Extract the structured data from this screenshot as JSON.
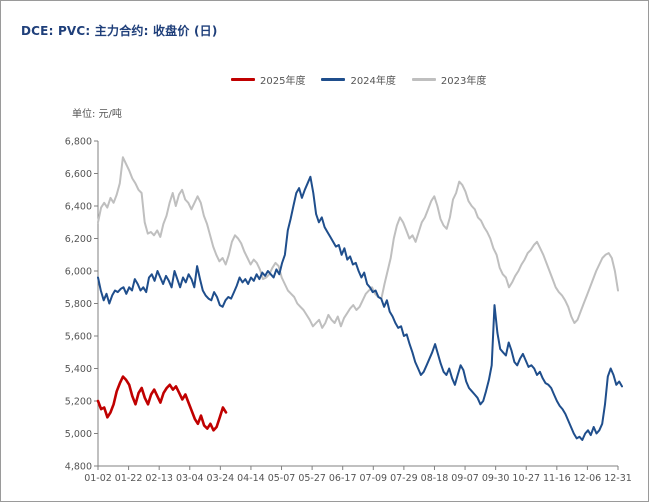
{
  "title": "DCE: PVC: 主力合约: 收盘价 (日)",
  "unit": "单位: 元/吨",
  "colors": {
    "s2025": "#c00000",
    "s2024": "#1f4e8c",
    "s2023": "#bfbfbf",
    "axis": "#808080"
  },
  "chart_data": {
    "type": "line",
    "title": "DCE: PVC: 主力合约: 收盘价 (日)",
    "ylabel": "单位: 元/吨",
    "ylim": [
      4800,
      6800
    ],
    "yticks": [
      {
        "value": 4800,
        "label": "4,800"
      },
      {
        "value": 5000,
        "label": "5,000"
      },
      {
        "value": 5200,
        "label": "5,200"
      },
      {
        "value": 5400,
        "label": "5,400"
      },
      {
        "value": 5600,
        "label": "5,600"
      },
      {
        "value": 5800,
        "label": "5,800"
      },
      {
        "value": 6000,
        "label": "6,000"
      },
      {
        "value": 6200,
        "label": "6,200"
      },
      {
        "value": 6400,
        "label": "6,400"
      },
      {
        "value": 6600,
        "label": "6,600"
      },
      {
        "value": 6800,
        "label": "6,800"
      }
    ],
    "xticks": [
      "01-02",
      "01-22",
      "02-13",
      "03-04",
      "03-24",
      "04-14",
      "05-07",
      "05-27",
      "06-17",
      "07-09",
      "07-29",
      "08-18",
      "09-07",
      "09-30",
      "10-27",
      "11-16",
      "12-06",
      "12-31"
    ],
    "legend_position": "top",
    "series": [
      {
        "name": "2025年度",
        "color": "#c00000",
        "values": [
          5200,
          5150,
          5160,
          5100,
          5130,
          5180,
          5260,
          5310,
          5350,
          5330,
          5300,
          5230,
          5180,
          5250,
          5280,
          5220,
          5180,
          5240,
          5270,
          5230,
          5190,
          5250,
          5280,
          5300,
          5270,
          5290,
          5250,
          5210,
          5240,
          5190,
          5140,
          5090,
          5060,
          5110,
          5050,
          5030,
          5060,
          5020,
          5040,
          5100,
          5160,
          5130
        ]
      },
      {
        "name": "2024年度",
        "color": "#1f4e8c",
        "values": [
          5960,
          5880,
          5820,
          5860,
          5800,
          5850,
          5880,
          5870,
          5890,
          5900,
          5860,
          5900,
          5880,
          5950,
          5920,
          5880,
          5900,
          5870,
          5960,
          5980,
          5940,
          6000,
          5960,
          5920,
          5970,
          5940,
          5900,
          6000,
          5950,
          5900,
          5960,
          5930,
          5980,
          5950,
          5900,
          6030,
          5950,
          5880,
          5850,
          5830,
          5820,
          5870,
          5840,
          5790,
          5780,
          5820,
          5840,
          5830,
          5870,
          5910,
          5960,
          5930,
          5950,
          5920,
          5960,
          5940,
          5980,
          5950,
          5990,
          5970,
          6000,
          5980,
          5960,
          6010,
          5980,
          6050,
          6100,
          6250,
          6320,
          6400,
          6480,
          6510,
          6450,
          6500,
          6540,
          6580,
          6480,
          6350,
          6300,
          6330,
          6270,
          6240,
          6210,
          6180,
          6150,
          6160,
          6100,
          6140,
          6070,
          6090,
          6040,
          6050,
          6000,
          5960,
          5990,
          5920,
          5900,
          5870,
          5880,
          5840,
          5830,
          5780,
          5820,
          5750,
          5720,
          5680,
          5650,
          5660,
          5600,
          5610,
          5550,
          5500,
          5440,
          5400,
          5360,
          5380,
          5420,
          5460,
          5500,
          5550,
          5490,
          5430,
          5380,
          5360,
          5400,
          5340,
          5300,
          5360,
          5420,
          5390,
          5320,
          5280,
          5260,
          5240,
          5220,
          5180,
          5200,
          5260,
          5330,
          5420,
          5790,
          5620,
          5520,
          5500,
          5480,
          5560,
          5510,
          5440,
          5420,
          5460,
          5490,
          5450,
          5410,
          5420,
          5400,
          5360,
          5380,
          5340,
          5310,
          5300,
          5280,
          5240,
          5200,
          5170,
          5150,
          5120,
          5080,
          5040,
          5000,
          4970,
          4980,
          4960,
          5000,
          5020,
          4990,
          5040,
          5000,
          5020,
          5060,
          5180,
          5350,
          5400,
          5360,
          5300,
          5320,
          5290
        ]
      },
      {
        "name": "2023年度",
        "color": "#bfbfbf",
        "values": [
          6300,
          6390,
          6420,
          6390,
          6450,
          6420,
          6470,
          6540,
          6700,
          6660,
          6620,
          6570,
          6540,
          6500,
          6480,
          6300,
          6230,
          6240,
          6220,
          6250,
          6210,
          6290,
          6340,
          6420,
          6480,
          6400,
          6470,
          6500,
          6440,
          6420,
          6380,
          6420,
          6460,
          6420,
          6340,
          6290,
          6220,
          6150,
          6100,
          6060,
          6080,
          6040,
          6100,
          6180,
          6220,
          6200,
          6170,
          6120,
          6080,
          6040,
          6070,
          6050,
          6010,
          5950,
          5960,
          5980,
          6020,
          6050,
          6030,
          5960,
          5920,
          5880,
          5860,
          5840,
          5800,
          5780,
          5760,
          5730,
          5700,
          5660,
          5680,
          5700,
          5650,
          5680,
          5730,
          5700,
          5680,
          5720,
          5660,
          5710,
          5740,
          5770,
          5790,
          5760,
          5780,
          5820,
          5860,
          5880,
          5900,
          5860,
          5840,
          5830,
          5920,
          6000,
          6080,
          6200,
          6280,
          6330,
          6300,
          6250,
          6200,
          6220,
          6180,
          6240,
          6300,
          6330,
          6380,
          6430,
          6460,
          6400,
          6320,
          6280,
          6260,
          6330,
          6440,
          6480,
          6550,
          6530,
          6490,
          6430,
          6400,
          6380,
          6330,
          6310,
          6270,
          6240,
          6200,
          6140,
          6100,
          6020,
          5980,
          5960,
          5900,
          5930,
          5970,
          6000,
          6040,
          6070,
          6110,
          6130,
          6160,
          6180,
          6140,
          6100,
          6050,
          6000,
          5950,
          5900,
          5870,
          5850,
          5820,
          5780,
          5720,
          5680,
          5700,
          5750,
          5800,
          5850,
          5900,
          5950,
          6000,
          6040,
          6080,
          6100,
          6110,
          6080,
          6000,
          5880
        ]
      }
    ]
  }
}
